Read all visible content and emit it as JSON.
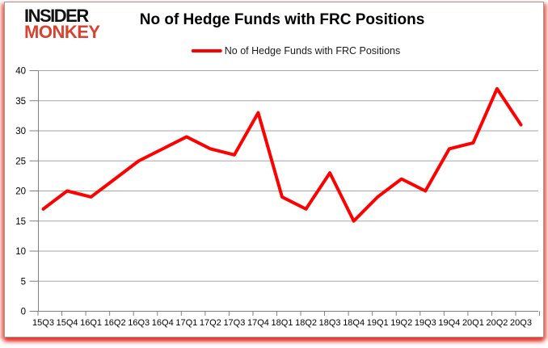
{
  "logo": {
    "line1": "INSIDER",
    "line2": "MONKEY"
  },
  "header": {
    "title": "No of Hedge Funds with FRC Positions"
  },
  "legend": {
    "label": "No of Hedge Funds with FRC Positions"
  },
  "colors": {
    "line": "#ff0000",
    "logo_accent": "#d8432f",
    "gridline": "#a6a6a6",
    "axis": "#7f7f7f",
    "card_glow": "#ec3c28"
  },
  "chart_data": {
    "type": "line",
    "title": "No of Hedge Funds with FRC Positions",
    "legend_entries": [
      "No of Hedge Funds with FRC Positions"
    ],
    "legend_position": "top",
    "grid": "horizontal",
    "xlabel": "",
    "ylabel": "",
    "ylim": [
      0,
      40
    ],
    "ytick_step": 5,
    "yticks": [
      0,
      5,
      10,
      15,
      20,
      25,
      30,
      35,
      40
    ],
    "categories": [
      "15Q3",
      "15Q4",
      "16Q1",
      "16Q2",
      "16Q3",
      "16Q4",
      "17Q1",
      "17Q2",
      "17Q3",
      "17Q4",
      "18Q1",
      "18Q2",
      "18Q3",
      "18Q4",
      "19Q1",
      "19Q2",
      "19Q3",
      "19Q4",
      "20Q1",
      "20Q2",
      "20Q3"
    ],
    "series": [
      {
        "name": "No of Hedge Funds with FRC Positions",
        "values": [
          17,
          20,
          19,
          22,
          25,
          27,
          29,
          27,
          26,
          33,
          19,
          17,
          23,
          15,
          19,
          22,
          20,
          27,
          28,
          37,
          31
        ]
      }
    ]
  }
}
